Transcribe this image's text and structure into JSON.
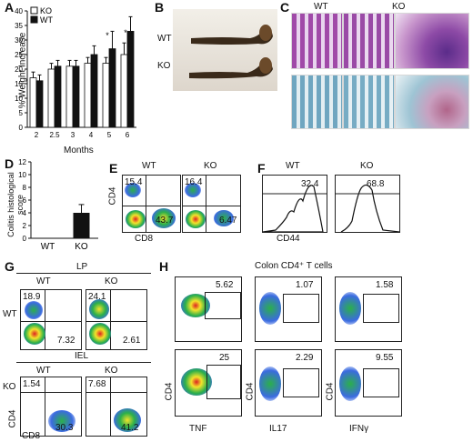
{
  "panels": {
    "A": "A",
    "B": "B",
    "C": "C",
    "D": "D",
    "E": "E",
    "F": "F",
    "G": "G",
    "H": "H"
  },
  "panelA": {
    "ylabel": "% Weight Increase",
    "xlabel": "Months",
    "legend": [
      "KO",
      "WT"
    ],
    "star": "*",
    "yticks": [
      "0",
      "5",
      "10",
      "15",
      "20",
      "25",
      "30",
      "35",
      "40"
    ],
    "xticks": [
      "2",
      "2.5",
      "3",
      "4",
      "5",
      "6"
    ]
  },
  "panelB": {
    "wt": "WT",
    "ko": "KO"
  },
  "panelC": {
    "wt": "WT",
    "ko": "KO"
  },
  "panelD": {
    "ylabel": "Colitis histological score",
    "yticks": [
      "0",
      "2",
      "4",
      "6",
      "8",
      "10",
      "12"
    ],
    "xticks": [
      "WT",
      "KO"
    ]
  },
  "panelE": {
    "wt": "WT",
    "ko": "KO",
    "xaxis": "CD8",
    "yaxis": "CD4",
    "wt_tl": "15.4",
    "wt_br": "43.7",
    "ko_tl": "16.4",
    "ko_br": "6.47"
  },
  "panelF": {
    "wt": "WT",
    "ko": "KO",
    "xaxis": "CD44",
    "wt_val": "32.4",
    "ko_val": "68.8"
  },
  "panelG": {
    "lp": "LP",
    "iel": "IEL",
    "wt": "WT",
    "ko": "KO",
    "row_wt": "WT",
    "row_ko": "KO",
    "xaxis": "CD8",
    "yaxis": "CD4",
    "lp_wt_tl": "18.9",
    "lp_wt_br": "7.32",
    "lp_ko_tl": "24.1",
    "lp_ko_br": "2.61",
    "iel_wt_tl": "1.54",
    "iel_wt_br": "30.3",
    "iel_ko_tl": "7.68",
    "iel_ko_br": "41.2"
  },
  "panelH": {
    "title": "Colon CD4⁺ T cells",
    "yaxis": "CD4",
    "x_tnf": "TNF",
    "x_il17": "IL17",
    "x_ifng": "IFNγ",
    "top_tnf": "5.62",
    "top_il17": "1.07",
    "top_ifng": "1.58",
    "bot_tnf": "25",
    "bot_il17": "2.29",
    "bot_ifng": "9.55"
  },
  "chart_data": [
    {
      "type": "bar",
      "categories": [
        "2",
        "2.5",
        "3",
        "4",
        "5",
        "6"
      ],
      "series": [
        {
          "name": "KO",
          "values": [
            17,
            20,
            21,
            22,
            22,
            25
          ]
        },
        {
          "name": "WT",
          "values": [
            16,
            21,
            21,
            25,
            27,
            33
          ]
        }
      ],
      "errors": [
        [
          2,
          2,
          2,
          2,
          2,
          4
        ],
        [
          2,
          2,
          2,
          3,
          6,
          5
        ]
      ],
      "xlabel": "Months",
      "ylabel": "% Weight Increase",
      "ylim": [
        0,
        40
      ]
    },
    {
      "type": "bar",
      "categories": [
        "WT",
        "KO"
      ],
      "values": [
        0,
        4
      ],
      "errors": [
        0,
        1.3
      ],
      "ylabel": "Colitis histological score",
      "ylim": [
        0,
        12
      ]
    }
  ],
  "colors": {
    "ko_bar": "#ffffff",
    "wt_bar": "#111111",
    "he_pink": "#c878b4",
    "ab_blue": "#8fb8cc"
  }
}
